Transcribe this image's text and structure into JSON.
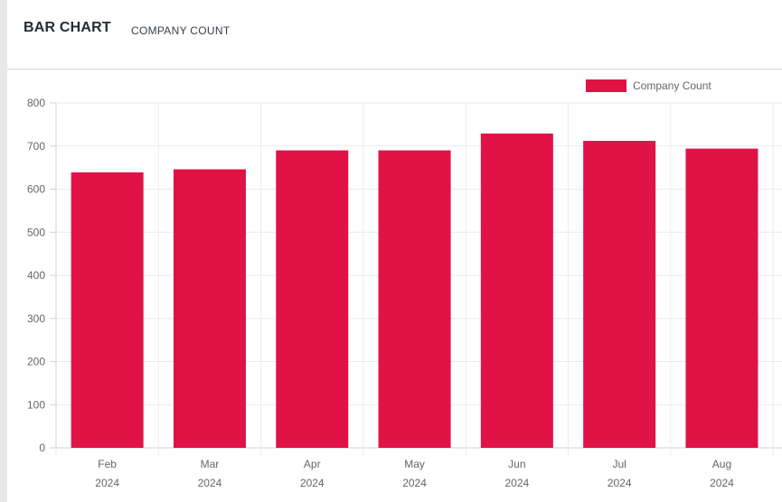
{
  "header": {
    "title": "BAR CHART",
    "subtitle": "COMPANY COUNT"
  },
  "colors": {
    "bar": "#e11246",
    "grid": "#ebebeb",
    "axis": "#d0d0d0"
  },
  "chart_data": {
    "type": "bar",
    "categories": [
      [
        "Feb",
        "2024"
      ],
      [
        "Mar",
        "2024"
      ],
      [
        "Apr",
        "2024"
      ],
      [
        "May",
        "2024"
      ],
      [
        "Jun",
        "2024"
      ],
      [
        "Jul",
        "2024"
      ],
      [
        "Aug",
        "2024"
      ]
    ],
    "series": [
      {
        "name": "Company Count",
        "values": [
          639,
          646,
          690,
          690,
          729,
          712,
          694
        ]
      }
    ],
    "ylim": [
      0,
      800
    ],
    "yticks": [
      0,
      100,
      200,
      300,
      400,
      500,
      600,
      700,
      800
    ],
    "legend": "top-right",
    "grid": true
  }
}
